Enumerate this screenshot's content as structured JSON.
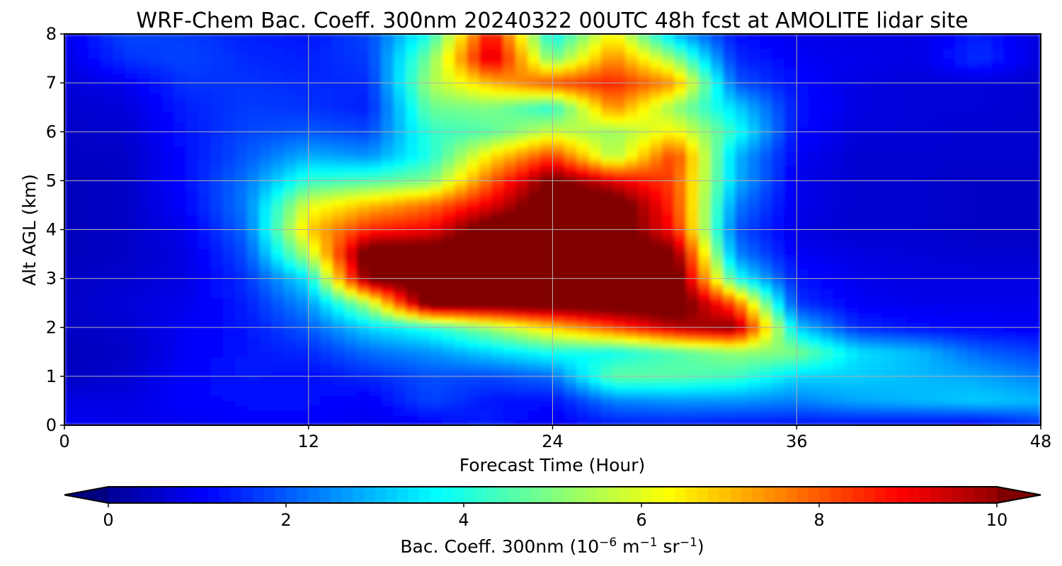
{
  "chart_data": {
    "type": "heatmap",
    "title": "WRF-Chem Bac. Coeff. 300nm  20240322 00UTC 48h fcst at AMOLITE lidar site",
    "xlabel": "Forecast Time (Hour)",
    "ylabel": "Alt AGL (km)",
    "xlim": [
      0,
      48
    ],
    "ylim": [
      0,
      8
    ],
    "x_ticks": [
      "0",
      "12",
      "24",
      "36",
      "48"
    ],
    "y_ticks": [
      "0",
      "1",
      "2",
      "3",
      "4",
      "5",
      "6",
      "7",
      "8"
    ],
    "grid": true,
    "colormap": "jet",
    "colorbar": {
      "label": "Bac. Coeff. 300nm  (10",
      "label_exp1": "−6",
      "label_mid1": " m",
      "label_exp2": "−1",
      "label_mid2": " sr",
      "label_exp3": "−1",
      "label_end": ")",
      "range": [
        0,
        10
      ],
      "ticks": [
        "0",
        "2",
        "4",
        "6",
        "8",
        "10"
      ],
      "extend": "both",
      "orientation": "horizontal"
    },
    "x": [
      0,
      3,
      6,
      9,
      12,
      15,
      18,
      21,
      24,
      27,
      30,
      33,
      36,
      39,
      42,
      45,
      48
    ],
    "y": [
      0,
      0.5,
      1,
      1.5,
      2,
      2.5,
      3,
      3.5,
      4,
      4.5,
      5,
      5.5,
      6,
      6.5,
      7,
      7.5,
      8
    ],
    "z": [
      [
        1.0,
        0.9,
        0.9,
        1.1,
        1.1,
        0.9,
        1.0,
        1.4,
        0.9,
        1.3,
        1.3,
        1.2,
        1.2,
        1.1,
        1.0,
        0.9,
        1.5
      ],
      [
        0.8,
        0.8,
        1.1,
        1.2,
        1.2,
        1.0,
        1.8,
        1.3,
        1.2,
        2.4,
        2.6,
        2.6,
        2.4,
        2.8,
        3.0,
        3.2,
        3.0
      ],
      [
        0.5,
        0.6,
        1.1,
        1.3,
        1.2,
        1.5,
        1.9,
        1.8,
        2.2,
        4.7,
        4.6,
        4.3,
        3.3,
        3.2,
        3.0,
        2.8,
        2.4
      ],
      [
        0.4,
        0.5,
        1.0,
        1.3,
        1.5,
        2.2,
        2.6,
        3.3,
        3.9,
        3.8,
        4.5,
        5.2,
        5.0,
        3.4,
        3.0,
        2.1,
        1.7
      ],
      [
        0.5,
        0.6,
        1.0,
        1.3,
        2.0,
        3.3,
        4.0,
        5.3,
        6.8,
        8.2,
        9.6,
        10.2,
        3.2,
        1.5,
        1.2,
        1.1,
        1.0
      ],
      [
        0.5,
        0.7,
        0.9,
        1.4,
        2.6,
        5.5,
        11,
        11,
        11,
        11,
        11,
        8.0,
        1.6,
        1.0,
        0.9,
        0.9,
        0.9
      ],
      [
        0.5,
        0.6,
        0.8,
        1.6,
        3.5,
        10.5,
        11,
        11,
        11,
        11,
        11,
        4.0,
        1.3,
        0.9,
        0.8,
        0.8,
        0.8
      ],
      [
        0.4,
        0.5,
        0.8,
        1.9,
        5.5,
        11,
        11,
        11,
        11,
        11,
        10.4,
        2.5,
        1.0,
        0.8,
        0.7,
        0.6,
        0.6
      ],
      [
        0.4,
        0.5,
        0.9,
        2.2,
        6.8,
        8.6,
        9.0,
        11,
        11,
        11,
        8.8,
        2.0,
        0.8,
        0.6,
        0.6,
        0.5,
        0.5
      ],
      [
        0.4,
        0.5,
        1.1,
        2.4,
        6.0,
        7.0,
        7.8,
        9.2,
        11,
        11,
        8.4,
        2.4,
        0.9,
        0.6,
        0.6,
        0.5,
        0.5
      ],
      [
        0.4,
        0.5,
        1.2,
        2.3,
        4.2,
        4.5,
        5.0,
        8.0,
        10.5,
        9.2,
        8.2,
        3.0,
        0.9,
        0.6,
        0.6,
        0.5,
        0.5
      ],
      [
        0.5,
        0.5,
        1.2,
        2.0,
        2.9,
        2.6,
        4.0,
        6.6,
        8.4,
        5.4,
        8.4,
        3.0,
        1.0,
        0.6,
        0.6,
        0.6,
        0.6
      ],
      [
        0.5,
        0.6,
        1.3,
        1.8,
        2.0,
        1.8,
        4.2,
        4.6,
        5.8,
        5.2,
        6.4,
        4.0,
        1.2,
        0.7,
        0.7,
        0.6,
        0.6
      ],
      [
        0.6,
        0.7,
        1.4,
        1.7,
        1.6,
        1.4,
        4.8,
        5.0,
        4.0,
        7.6,
        5.2,
        3.3,
        1.3,
        0.8,
        0.7,
        0.7,
        0.6
      ],
      [
        0.7,
        0.9,
        1.6,
        1.6,
        1.5,
        1.5,
        5.4,
        7.0,
        8.2,
        8.6,
        7.4,
        2.0,
        1.2,
        0.8,
        0.7,
        0.7,
        0.6
      ],
      [
        0.8,
        1.6,
        1.8,
        1.5,
        1.4,
        1.7,
        5.0,
        9.6,
        4.8,
        7.6,
        5.2,
        1.5,
        1.0,
        0.9,
        0.8,
        1.6,
        0.7
      ],
      [
        0.9,
        1.8,
        1.7,
        1.4,
        1.3,
        1.8,
        4.0,
        9.0,
        3.6,
        6.4,
        3.0,
        1.2,
        0.9,
        0.8,
        0.8,
        1.4,
        0.7
      ]
    ]
  }
}
